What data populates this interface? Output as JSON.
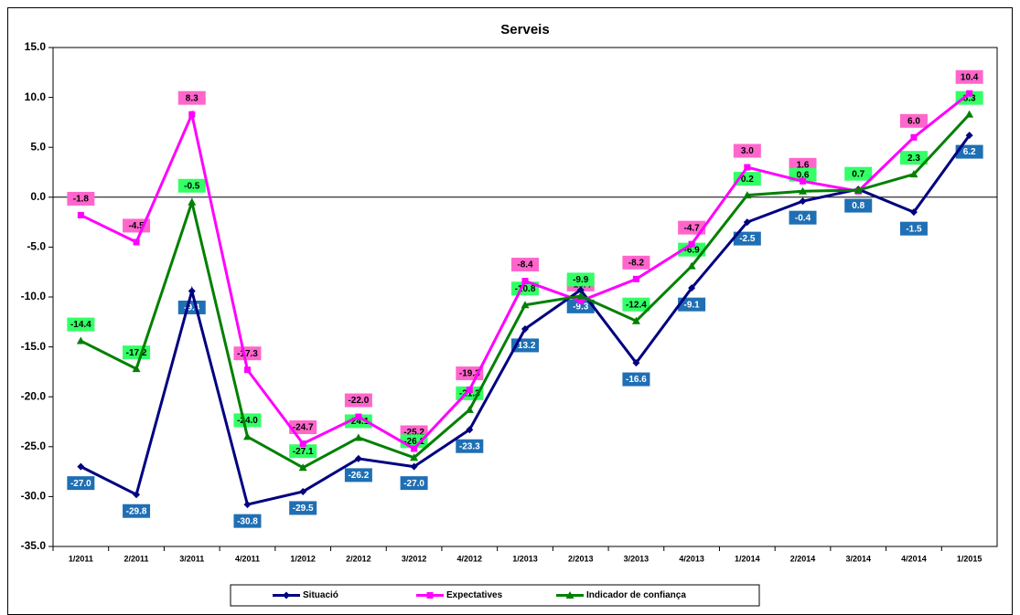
{
  "chart_data": {
    "type": "line",
    "title": "Serveis",
    "categories": [
      "1/2011",
      "2/2011",
      "3/2011",
      "4/2011",
      "1/2012",
      "2/2012",
      "3/2012",
      "4/2012",
      "1/2013",
      "2/2013",
      "3/2013",
      "4/2013",
      "1/2014",
      "2/2014",
      "3/2014",
      "4/2014",
      "1/2015"
    ],
    "series": [
      {
        "name": "Situació",
        "color": "#000080",
        "marker": "diamond",
        "label_color": "#1f6fb4",
        "label_text_color": "#ffffff",
        "label_position": "below",
        "values": [
          -27.0,
          -29.8,
          -9.4,
          -30.8,
          -29.5,
          -26.2,
          -27.0,
          -23.3,
          -13.2,
          -9.3,
          -16.6,
          -9.1,
          -2.5,
          -0.4,
          0.8,
          -1.5,
          6.2
        ],
        "value_labels": [
          "-27.0",
          "-29.8",
          "-9.4",
          "-30.8",
          "-29.5",
          "-26.2",
          "-27.0",
          "-23.3",
          "-13.2",
          "-9.3",
          "-16.6",
          "-9.1",
          "-2.5",
          "-0.4",
          "0.8",
          "-1.5",
          "6.2"
        ]
      },
      {
        "name": "Expectatives",
        "color": "#ff00ff",
        "marker": "square",
        "label_color": "#ff66cc",
        "label_text_color": "#000000",
        "label_position": "above",
        "values": [
          -1.8,
          -4.5,
          8.3,
          -17.3,
          -24.7,
          -22.0,
          -25.2,
          -19.3,
          -8.4,
          -10.4,
          -8.2,
          -4.7,
          3.0,
          1.6,
          0.6,
          6.0,
          10.4
        ],
        "value_labels": [
          "-1.8",
          "-4.5",
          "8.3",
          "-17.3",
          "-24.7",
          "-22.0",
          "-25.2",
          "-19.3",
          "-8.4",
          "-10.4",
          "-8.2",
          "-4.7",
          "3.0",
          "1.6",
          null,
          "6.0",
          "10.4"
        ]
      },
      {
        "name": "Indicador de confiança",
        "color": "#008000",
        "marker": "triangle",
        "label_color": "#33ff66",
        "label_text_color": "#000000",
        "label_position": "above",
        "values": [
          -14.4,
          -17.2,
          -0.5,
          -24.0,
          -27.1,
          -24.1,
          -26.1,
          -21.3,
          -10.8,
          -9.9,
          -12.4,
          -6.9,
          0.2,
          0.6,
          0.7,
          2.3,
          8.3
        ],
        "value_labels": [
          "-14.4",
          "-17.2",
          "-0.5",
          "-24.0",
          "-27.1",
          "-24.1",
          "-26.1",
          "-21.3",
          "-10.8",
          "-9.9",
          "-12.4",
          "-6.9",
          "0.2",
          "0.6",
          "0.7",
          "2.3",
          "8.3"
        ]
      }
    ],
    "ylim": [
      -35,
      15
    ],
    "yticks": [
      {
        "value": -35,
        "label": "-35.0"
      },
      {
        "value": -30,
        "label": "-30.0"
      },
      {
        "value": -25,
        "label": "-25.0"
      },
      {
        "value": -20,
        "label": "-20.0"
      },
      {
        "value": -15,
        "label": "-15.0"
      },
      {
        "value": -10,
        "label": "-10.0"
      },
      {
        "value": -5,
        "label": "-5.0"
      },
      {
        "value": 0,
        "label": "0.0"
      },
      {
        "value": 5,
        "label": "5.0"
      },
      {
        "value": 10,
        "label": "10.0"
      },
      {
        "value": 15,
        "label": "15.0"
      }
    ],
    "legend": "bottom"
  }
}
